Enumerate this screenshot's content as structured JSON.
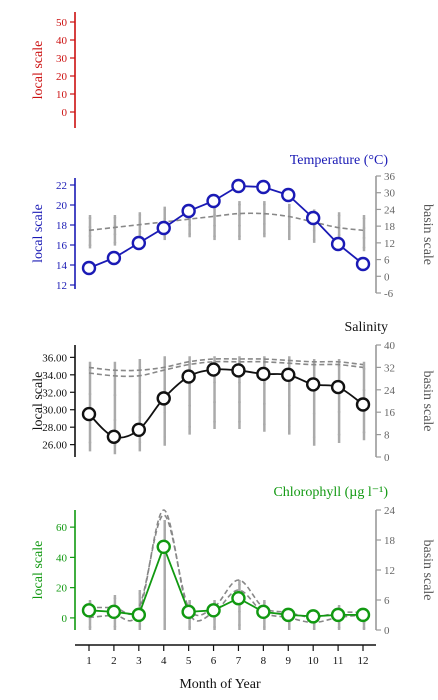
{
  "figure": {
    "xlabel": "Month of Year",
    "months": [
      "1",
      "2",
      "3",
      "4",
      "5",
      "6",
      "7",
      "8",
      "9",
      "10",
      "11",
      "12"
    ]
  },
  "colors": {
    "red": "#cc1111",
    "blue": "#1a1ab5",
    "black": "#111111",
    "green": "#119911",
    "grey": "#999999",
    "dash": "#888888"
  },
  "chart_data": [
    {
      "type": "line",
      "title": "",
      "ylabel": "local scale",
      "color": "#cc1111",
      "ylim": [
        0,
        50
      ],
      "yticks": [
        "50",
        "40",
        "30",
        "20",
        "10",
        "0"
      ],
      "x": [
        1,
        2,
        3,
        4,
        5,
        6,
        7,
        8,
        9,
        10,
        11,
        12
      ],
      "series": []
    },
    {
      "type": "line",
      "title": "Temperature (°C)",
      "ylabel": "local scale",
      "y2label": "basin scale",
      "color": "#1a1ab5",
      "ylim": [
        12,
        22
      ],
      "yticks": [
        "22",
        "20",
        "18",
        "16",
        "14",
        "12"
      ],
      "y2lim": [
        -6,
        36
      ],
      "y2ticks": [
        "36",
        "30",
        "24",
        "18",
        "12",
        "6",
        "0",
        "-6"
      ],
      "x": [
        1,
        2,
        3,
        4,
        5,
        6,
        7,
        8,
        9,
        10,
        11,
        12
      ],
      "series": [
        {
          "axis": "local",
          "values": [
            13.7,
            14.7,
            16.2,
            17.7,
            19.4,
            20.4,
            21.9,
            21.8,
            21.0,
            18.7,
            16.1,
            14.1
          ]
        },
        {
          "axis": "basin",
          "values": [
            16.5,
            17.5,
            18.5,
            19.5,
            20.5,
            21.5,
            22.5,
            22.5,
            21.5,
            19.5,
            17.5,
            16.5
          ]
        }
      ],
      "spread": [
        [
          10,
          22
        ],
        [
          11,
          22
        ],
        [
          12,
          23
        ],
        [
          13,
          25
        ],
        [
          14,
          26
        ],
        [
          13,
          27
        ],
        [
          13,
          27
        ],
        [
          14,
          27
        ],
        [
          13,
          26
        ],
        [
          12,
          24
        ],
        [
          10,
          23
        ],
        [
          9,
          22
        ]
      ]
    },
    {
      "type": "line",
      "title": "Salinity",
      "ylabel": "local scale",
      "y2label": "basin scale",
      "color": "#111111",
      "ylim": [
        25.5,
        36.5
      ],
      "yticks": [
        "36.00",
        "34.00",
        "32.00",
        "30.00",
        "28.00",
        "26.00"
      ],
      "y2lim": [
        0,
        40
      ],
      "y2ticks": [
        "40",
        "32",
        "24",
        "16",
        "8",
        "0"
      ],
      "x": [
        1,
        2,
        3,
        4,
        5,
        6,
        7,
        8,
        9,
        10,
        11,
        12
      ],
      "series": [
        {
          "axis": "local",
          "values": [
            29.5,
            26.9,
            27.7,
            31.3,
            33.8,
            34.6,
            34.5,
            34.1,
            34.0,
            32.9,
            32.6,
            30.6
          ]
        },
        {
          "axis": "basin",
          "values": [
            30,
            29,
            29,
            31,
            33,
            34,
            34,
            34,
            33.5,
            33,
            33,
            32
          ]
        },
        {
          "axis": "basin",
          "values": [
            32,
            31,
            31,
            32,
            34,
            35,
            35,
            35,
            34.5,
            34,
            34,
            33
          ]
        }
      ],
      "spread": [
        [
          2,
          34
        ],
        [
          1,
          34
        ],
        [
          2,
          35
        ],
        [
          4,
          36
        ],
        [
          8,
          36
        ],
        [
          10,
          36
        ],
        [
          10,
          36
        ],
        [
          9,
          36
        ],
        [
          8,
          36
        ],
        [
          4,
          35
        ],
        [
          5,
          35
        ],
        [
          6,
          34
        ]
      ]
    },
    {
      "type": "line",
      "title": "Chlorophyll (µg l⁻¹)",
      "ylabel": "local scale",
      "y2label": "basin scale",
      "color": "#119911",
      "ylim": [
        -8,
        70
      ],
      "yticks": [
        "60",
        "40",
        "20",
        "0"
      ],
      "y2lim": [
        0,
        24
      ],
      "y2ticks": [
        "24",
        "18",
        "12",
        "6",
        "0"
      ],
      "x": [
        1,
        2,
        3,
        4,
        5,
        6,
        7,
        8,
        9,
        10,
        11,
        12
      ],
      "series": [
        {
          "axis": "local",
          "values": [
            5,
            4,
            2,
            47,
            4,
            5,
            13,
            4,
            2,
            1,
            2,
            2
          ]
        },
        {
          "axis": "basin",
          "values": [
            4.5,
            4.5,
            4.5,
            23,
            4.5,
            4.5,
            10,
            4.5,
            3.5,
            2.5,
            3.5,
            3.5
          ]
        },
        {
          "axis": "basin",
          "values": [
            2.5,
            3,
            3.5,
            24,
            3.5,
            3.5,
            8,
            3.5,
            2.5,
            1.5,
            2.5,
            3
          ]
        }
      ],
      "spread": [
        [
          0,
          6
        ],
        [
          0,
          7
        ],
        [
          0,
          8
        ],
        [
          0,
          22
        ],
        [
          0,
          6
        ],
        [
          0,
          6
        ],
        [
          0,
          10
        ],
        [
          0,
          6
        ],
        [
          0,
          4
        ],
        [
          0,
          3
        ],
        [
          0,
          5
        ],
        [
          0,
          4
        ]
      ]
    }
  ]
}
